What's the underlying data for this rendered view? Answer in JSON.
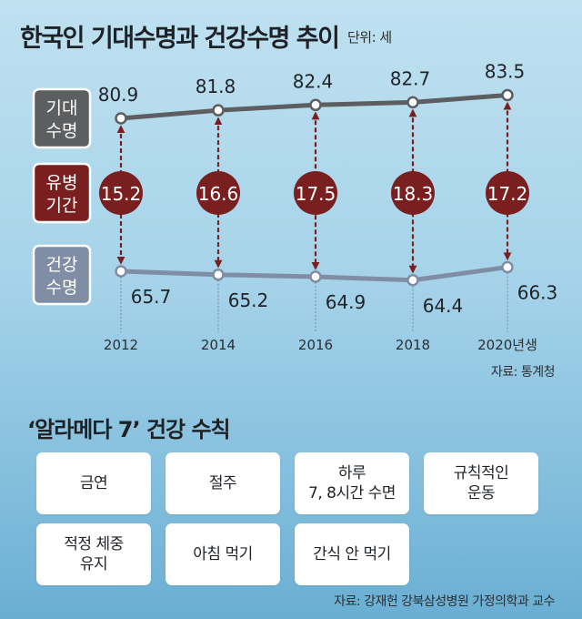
{
  "header": {
    "title": "한국인 기대수명과 건강수명 추이",
    "unit": "단위: 세"
  },
  "chart_data": {
    "type": "line",
    "title": "한국인 기대수명과 건강수명 추이",
    "unit": "단위: 세",
    "x": [
      "2012",
      "2014",
      "2016",
      "2018",
      "2020년생"
    ],
    "series": [
      {
        "name": "기대수명",
        "values": [
          80.9,
          81.8,
          82.4,
          82.7,
          83.5
        ]
      },
      {
        "name": "건강수명",
        "values": [
          65.7,
          65.2,
          64.9,
          64.4,
          66.3
        ]
      }
    ],
    "gap": {
      "name": "유병기간",
      "values": [
        15.2,
        16.6,
        17.5,
        18.3,
        17.2
      ]
    },
    "colors": {
      "life": "#5c5e60",
      "health": "#7f8ea4",
      "gap": "#7a1f1f"
    }
  },
  "source_chart": "자료: 통계청",
  "rules": {
    "title": "‘알라메다 7’ 건강 수칙",
    "items": [
      "금연",
      "절주",
      "하루\n7, 8시간 수면",
      "규칙적인\n운동",
      "적정 체중\n유지",
      "아침 먹기",
      "간식 안 먹기"
    ]
  },
  "source_rules": "자료: 강재헌 강북삼성병원 가정의학과 교수"
}
